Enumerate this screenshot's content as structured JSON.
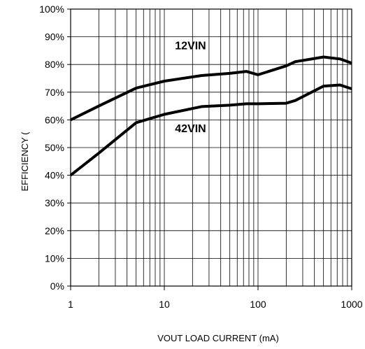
{
  "chart_data": {
    "type": "line",
    "xscale": "log",
    "xlim": [
      1,
      1000
    ],
    "ylim": [
      0,
      100
    ],
    "xlabel": "VOUT LOAD CURRENT (mA)",
    "ylabel": "EFFICIENCY (",
    "grid": true,
    "x_ticks": [
      1,
      10,
      100,
      1000
    ],
    "x_tick_labels": [
      "1",
      "10",
      "100",
      "1000"
    ],
    "y_ticks": [
      0,
      10,
      20,
      30,
      40,
      50,
      60,
      70,
      80,
      90,
      100
    ],
    "y_tick_labels": [
      "0%",
      "10%",
      "20%",
      "30%",
      "40%",
      "50%",
      "60%",
      "70%",
      "80%",
      "90%",
      "100%"
    ],
    "series": [
      {
        "name": "12VIN",
        "x": [
          1,
          2,
          5,
          10,
          25,
          50,
          75,
          100,
          200,
          250,
          500,
          750,
          1000
        ],
        "y": [
          60,
          65,
          71.5,
          74,
          76,
          76.8,
          77.5,
          76.3,
          79.5,
          81,
          82.7,
          82,
          80.5
        ]
      },
      {
        "name": "42VIN",
        "x": [
          1,
          2,
          5,
          10,
          25,
          50,
          75,
          100,
          200,
          250,
          500,
          750,
          1000
        ],
        "y": [
          40,
          48,
          59,
          62,
          64.8,
          65.3,
          65.8,
          65.8,
          66,
          67,
          72.2,
          72.6,
          71.2
        ]
      }
    ],
    "annotations": [
      {
        "text": "12VIN",
        "series": "12VIN",
        "x": 13,
        "y": 85.5
      },
      {
        "text": "42VIN",
        "series": "42VIN",
        "x": 13,
        "y": 55.5
      }
    ]
  }
}
